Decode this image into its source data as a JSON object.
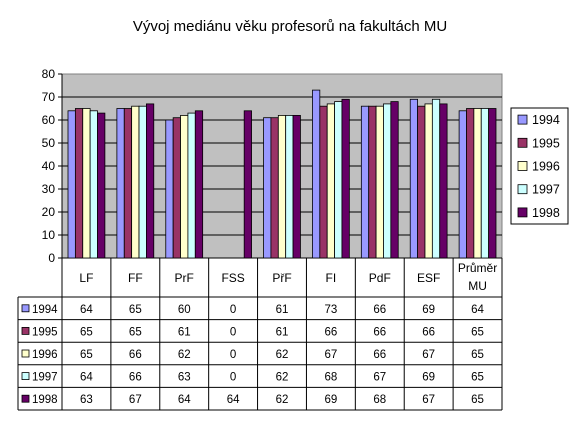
{
  "chart_data": {
    "type": "bar",
    "title": "Vývoj mediánu věku profesorů na fakultách MU",
    "categories": [
      "LF",
      "FF",
      "PrF",
      "FSS",
      "PřF",
      "FI",
      "PdF",
      "ESF",
      "Průměr MU"
    ],
    "series": [
      {
        "name": "1994",
        "color": "#9999ff",
        "values": [
          64,
          65,
          60,
          0,
          61,
          73,
          66,
          69,
          64
        ]
      },
      {
        "name": "1995",
        "color": "#993366",
        "values": [
          65,
          65,
          61,
          0,
          61,
          66,
          66,
          66,
          65
        ]
      },
      {
        "name": "1996",
        "color": "#ffffcc",
        "values": [
          65,
          66,
          62,
          0,
          62,
          67,
          66,
          67,
          65
        ]
      },
      {
        "name": "1997",
        "color": "#ccffff",
        "values": [
          64,
          66,
          63,
          0,
          62,
          68,
          67,
          69,
          65
        ]
      },
      {
        "name": "1998",
        "color": "#660066",
        "values": [
          63,
          67,
          64,
          64,
          62,
          69,
          68,
          67,
          65
        ]
      }
    ],
    "ylim": [
      0,
      80
    ],
    "yticks": [
      0,
      10,
      20,
      30,
      40,
      50,
      60,
      70,
      80
    ],
    "grid": true,
    "plot_background": "#c0c0c0",
    "legend_position": "right",
    "data_table": true
  }
}
